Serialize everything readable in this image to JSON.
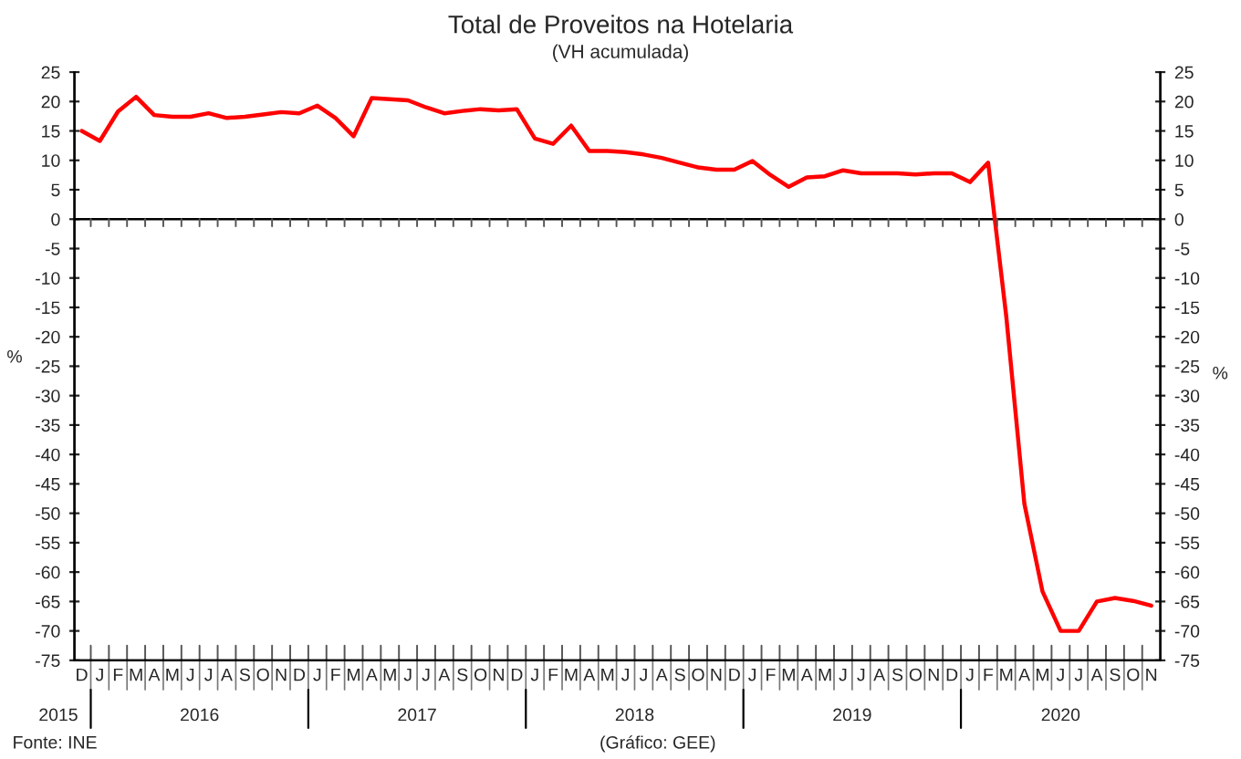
{
  "chart_data": {
    "type": "line",
    "title": "Total de Proveitos na Hotelaria",
    "subtitle": "(VH acumulada)",
    "ylabel": "%",
    "y2label": "%",
    "categories": [
      "D",
      "J",
      "F",
      "M",
      "A",
      "M",
      "J",
      "J",
      "A",
      "S",
      "O",
      "N",
      "D",
      "J",
      "F",
      "M",
      "A",
      "M",
      "J",
      "J",
      "A",
      "S",
      "O",
      "N",
      "D",
      "J",
      "F",
      "M",
      "A",
      "M",
      "J",
      "J",
      "A",
      "S",
      "O",
      "N",
      "D",
      "J",
      "F",
      "M",
      "A",
      "M",
      "J",
      "J",
      "A",
      "S",
      "O",
      "N",
      "D",
      "J",
      "F",
      "M",
      "A",
      "M",
      "J",
      "J",
      "A",
      "S",
      "O",
      "N"
    ],
    "series": [
      {
        "color": "#ff0000",
        "values": [
          15.0,
          13.3,
          18.3,
          20.8,
          17.7,
          17.4,
          17.4,
          18.0,
          17.2,
          17.4,
          17.8,
          18.2,
          18.0,
          19.3,
          17.2,
          14.1,
          20.6,
          20.4,
          20.2,
          19.0,
          18.0,
          18.4,
          18.7,
          18.5,
          18.7,
          13.7,
          12.8,
          15.9,
          11.6,
          11.6,
          11.4,
          11.0,
          10.4,
          9.6,
          8.8,
          8.4,
          8.4,
          9.9,
          7.5,
          5.5,
          7.1,
          7.3,
          8.3,
          7.8,
          7.8,
          7.8,
          7.6,
          7.8,
          7.8,
          6.3,
          9.6,
          -16.5,
          -48.4,
          -63.3,
          -70.0,
          -70.0,
          -65.0,
          -64.4,
          -64.9,
          -65.7
        ]
      }
    ],
    "ylim": [
      -75,
      25
    ],
    "yticks": [
      -75,
      -70,
      -65,
      -60,
      -55,
      -50,
      -45,
      -40,
      -35,
      -30,
      -25,
      -20,
      -15,
      -10,
      -5,
      0,
      5,
      10,
      15,
      20,
      25
    ],
    "y2lim": [
      -75,
      25
    ],
    "y2ticks": [
      -75,
      -70,
      -65,
      -60,
      -55,
      -50,
      -45,
      -40,
      -35,
      -30,
      -25,
      -20,
      -15,
      -10,
      -5,
      0,
      5,
      10,
      15,
      20,
      25
    ],
    "ref_lines": [
      {
        "axis": "y",
        "value": 0,
        "color": "#000000"
      }
    ],
    "grid": false,
    "legend": false,
    "marker": "none",
    "line_style": "solid",
    "annotations": [
      "2015",
      "2016",
      "2017",
      "2018",
      "2019",
      "2020",
      "Fonte: INE",
      "(Gráfico: GEE)"
    ]
  }
}
